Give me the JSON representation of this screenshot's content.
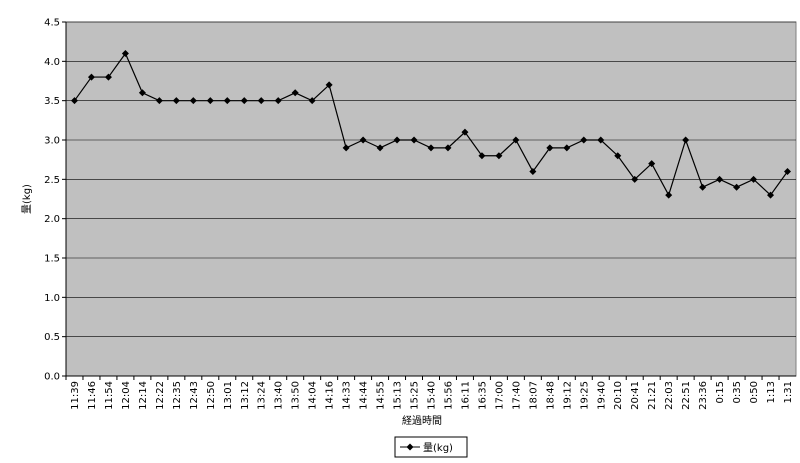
{
  "chart_data": {
    "type": "line",
    "x_label": "経過時間",
    "y_label": "量(kg)",
    "categories": [
      "11:39",
      "11:46",
      "11:54",
      "12:04",
      "12:14",
      "12:22",
      "12:35",
      "12:43",
      "12:50",
      "13:01",
      "13:12",
      "13:24",
      "13:40",
      "13:50",
      "14:04",
      "14:16",
      "14:33",
      "14:44",
      "14:55",
      "15:13",
      "15:25",
      "15:40",
      "15:56",
      "16:11",
      "16:35",
      "17:00",
      "17:40",
      "18:07",
      "18:48",
      "19:12",
      "19:25",
      "19:40",
      "20:10",
      "20:41",
      "21:21",
      "22:03",
      "22:51",
      "23:36",
      "0:15",
      "0:35",
      "0:50",
      "1:13",
      "1:31"
    ],
    "series": [
      {
        "name": "量(kg)",
        "color": "#000000",
        "values": [
          3.5,
          3.8,
          3.8,
          4.1,
          3.6,
          3.5,
          3.5,
          3.5,
          3.5,
          3.5,
          3.5,
          3.5,
          3.5,
          3.6,
          3.5,
          3.7,
          2.9,
          3.0,
          2.9,
          3.0,
          3.0,
          2.9,
          2.9,
          3.1,
          2.8,
          2.8,
          3.0,
          2.6,
          2.9,
          2.9,
          3.0,
          3.0,
          2.8,
          2.5,
          2.7,
          2.3,
          3.0,
          2.4,
          2.5,
          2.4,
          2.5,
          2.3,
          2.6
        ]
      }
    ],
    "ylim": [
      0,
      4.5
    ],
    "yticks": [
      {
        "value": 0,
        "label": "0.0"
      },
      0.5,
      {
        "value": 1,
        "label": "1.0"
      },
      1.5,
      {
        "value": 2,
        "label": "2.0"
      },
      2.5,
      {
        "value": 3,
        "label": "3.0"
      },
      3.5,
      {
        "value": 4,
        "label": "4.0"
      },
      4.5
    ],
    "grid": true,
    "plot_background": "#c0c0c0",
    "legend": "bottom"
  }
}
